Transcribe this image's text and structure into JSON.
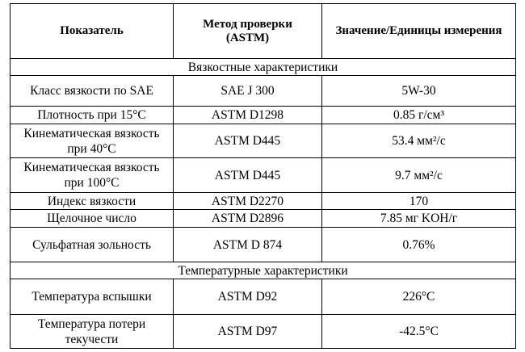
{
  "table": {
    "header": [
      "Показатель",
      "Метод проверки (ASTM)",
      "Значение/Единицы измерения"
    ],
    "sections": [
      {
        "title": "Вязкостные характеристики",
        "rows": [
          [
            "Класс вязкости по SAE",
            "SAE J 300",
            "5W-30"
          ],
          [
            "Плотность при 15°C",
            "ASTM D1298",
            "0.85 г/см³"
          ],
          [
            "Кинематическая вязкость при 40°C",
            "ASTM D445",
            "53.4 мм²/с"
          ],
          [
            "Кинематическая вязкость при 100°C",
            "ASTM D445",
            "9.7 мм²/с"
          ],
          [
            "Индекс вязкости",
            "ASTM D2270",
            "170"
          ],
          [
            "Щелочное число",
            "ASTM D2896",
            "7.85 мг KOH/г"
          ],
          [
            "Сульфатная зольность",
            "ASTM D 874",
            "0.76%"
          ]
        ]
      },
      {
        "title": "Температурные характеристики",
        "rows": [
          [
            "Температура вспышки",
            "ASTM D92",
            "226°C"
          ],
          [
            "Температура потери текучести",
            "ASTM D97",
            "-42.5°C"
          ]
        ]
      }
    ]
  }
}
